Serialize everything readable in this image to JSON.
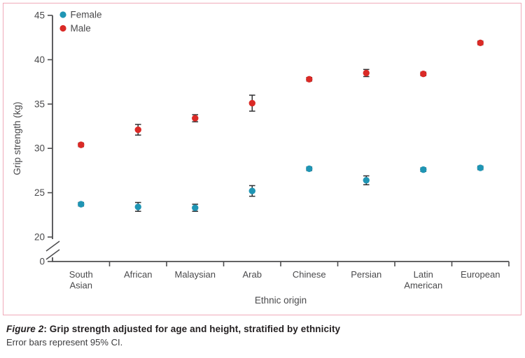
{
  "figure": {
    "caption_label": "Figure 2",
    "caption_title": ": Grip strength adjusted for age and height, stratified by ethnicity",
    "caption_note": "Error bars represent 95% CI."
  },
  "colors": {
    "female": "#1f95b4",
    "male": "#da2a26",
    "axis": "#4d4d4f",
    "tick_text": "#4a4a4c",
    "error_bar": "#2f2f31",
    "panel_border": "#f0aab9",
    "caption_text": "#231f20"
  },
  "chart_data": {
    "type": "scatter",
    "title": "",
    "xlabel": "Ethnic origin",
    "ylabel": "Grip strength (kg)",
    "categories": [
      "South Asian",
      "African",
      "Malaysian",
      "Arab",
      "Chinese",
      "Persian",
      "Latin American",
      "European"
    ],
    "categories_wrapped": [
      [
        "South",
        "Asian"
      ],
      [
        "African"
      ],
      [
        "Malaysian"
      ],
      [
        "Arab"
      ],
      [
        "Chinese"
      ],
      [
        "Persian"
      ],
      [
        "Latin",
        "American"
      ],
      [
        "European"
      ]
    ],
    "y_ticks": [
      0,
      20,
      25,
      30,
      35,
      40,
      45
    ],
    "y_axis_break": true,
    "ylim_display": [
      20,
      45
    ],
    "grid": false,
    "legend_position": "top-left",
    "legend": [
      {
        "name": "Female",
        "color": "#1f95b4"
      },
      {
        "name": "Male",
        "color": "#da2a26"
      }
    ],
    "series": [
      {
        "name": "Female",
        "color": "#1f95b4",
        "values": [
          23.7,
          23.4,
          23.3,
          25.2,
          27.7,
          26.4,
          27.6,
          27.8
        ],
        "ci_low": [
          23.5,
          22.9,
          22.9,
          24.6,
          27.5,
          25.9,
          27.4,
          27.6
        ],
        "ci_high": [
          23.9,
          23.9,
          23.7,
          25.8,
          27.9,
          26.9,
          27.8,
          28.0
        ]
      },
      {
        "name": "Male",
        "color": "#da2a26",
        "values": [
          30.4,
          32.1,
          33.4,
          35.1,
          37.8,
          38.5,
          38.4,
          41.9
        ],
        "ci_low": [
          30.2,
          31.5,
          33.0,
          34.2,
          37.6,
          38.1,
          38.2,
          41.7
        ],
        "ci_high": [
          30.6,
          32.7,
          33.8,
          36.0,
          38.0,
          38.9,
          38.6,
          42.1
        ]
      }
    ]
  }
}
